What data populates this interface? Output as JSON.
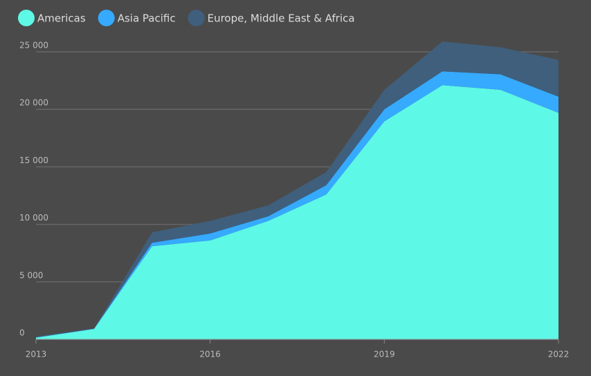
{
  "chart_data": {
    "type": "stacked-area",
    "x": [
      2013,
      2014,
      2015,
      2016,
      2017,
      2018,
      2019,
      2020,
      2021,
      2022
    ],
    "xlim": [
      2013,
      2022
    ],
    "xticks": [
      2013,
      2016,
      2019,
      2022
    ],
    "ylim": [
      0,
      25000
    ],
    "yticks": [
      0,
      {
        "value": 5000,
        "label": "5 000"
      },
      {
        "value": 10000,
        "label": "10 000"
      },
      {
        "value": 15000,
        "label": "15 000"
      },
      {
        "value": 20000,
        "label": "20 000"
      },
      {
        "value": 25000,
        "label": "25 000"
      }
    ],
    "grid": true,
    "legend": "top-left",
    "series": [
      {
        "name": "Americas",
        "color": "#5ef8e6",
        "values": [
          150,
          900,
          8100,
          8600,
          10300,
          12600,
          18950,
          22100,
          21700,
          19700
        ]
      },
      {
        "name": "Asia Pacific",
        "color": "#35aaff",
        "values": [
          20,
          30,
          300,
          600,
          400,
          800,
          1050,
          1200,
          1350,
          1400
        ]
      },
      {
        "name": "Europe, Middle East & Africa",
        "color": "#3f5f7d",
        "values": [
          80,
          20,
          900,
          1100,
          950,
          1150,
          1700,
          2600,
          2350,
          3200
        ]
      }
    ]
  }
}
